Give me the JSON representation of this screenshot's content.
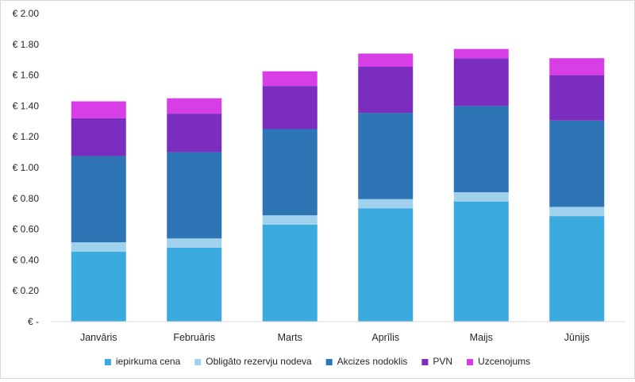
{
  "chart_data": {
    "type": "bar",
    "stacked": true,
    "categories": [
      "Janvāris",
      "Februāris",
      "Marts",
      "Aprīlis",
      "Maijs",
      "Jūnijs"
    ],
    "series": [
      {
        "name": "iepirkuma cena",
        "color": "#3AAADF",
        "values": [
          0.455,
          0.48,
          0.63,
          0.735,
          0.78,
          0.685
        ]
      },
      {
        "name": "Obligāto rezervju nodeva",
        "color": "#A0D2EE",
        "values": [
          0.06,
          0.06,
          0.06,
          0.06,
          0.06,
          0.06
        ]
      },
      {
        "name": "Akcizes nodoklis",
        "color": "#2E75B6",
        "values": [
          0.56,
          0.56,
          0.56,
          0.56,
          0.56,
          0.56
        ]
      },
      {
        "name": "PVN",
        "color": "#7B2DBF",
        "values": [
          0.245,
          0.25,
          0.28,
          0.3,
          0.31,
          0.295
        ]
      },
      {
        "name": "Uzcenojums",
        "color": "#D73EE5",
        "values": [
          0.11,
          0.1,
          0.095,
          0.085,
          0.06,
          0.11
        ]
      }
    ],
    "yticks": [
      "€ -",
      "€ 0.20",
      "€ 0.40",
      "€ 0.60",
      "€ 0.80",
      "€ 1.00",
      "€ 1.20",
      "€ 1.40",
      "€ 1.60",
      "€ 1.80",
      "€ 2.00"
    ],
    "ylim": [
      0,
      2.0
    ],
    "grid": false,
    "legend_position": "bottom",
    "title": "",
    "xlabel": "",
    "ylabel": ""
  }
}
